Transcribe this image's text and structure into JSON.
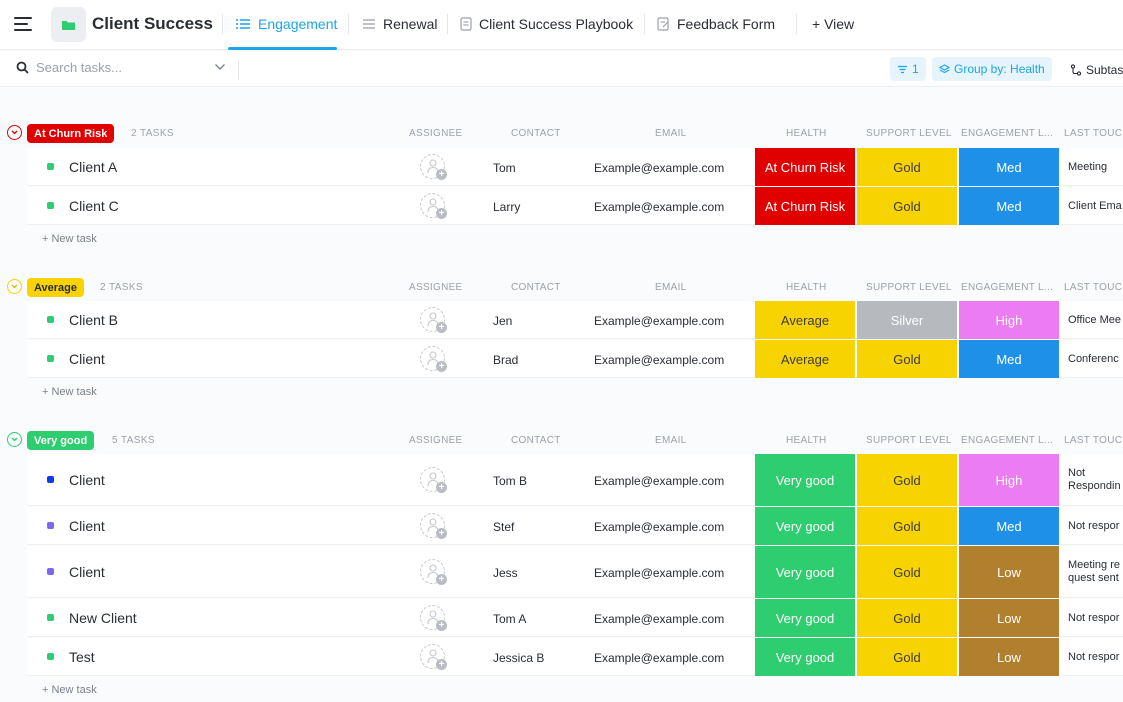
{
  "header": {
    "space_title": "Client Success",
    "tabs": [
      {
        "label": "Engagement",
        "active": true
      },
      {
        "label": "Renewal"
      },
      {
        "label": "Client Success Playbook"
      },
      {
        "label": "Feedback Form"
      },
      {
        "label": "+ View"
      }
    ]
  },
  "toolbar": {
    "search_placeholder": "Search tasks...",
    "filter_label": "1",
    "group_label": "Group by: Health",
    "subtasks_label": "Subtas"
  },
  "columns": {
    "assignee": "ASSIGNEE",
    "contact": "CONTACT",
    "email": "EMAIL",
    "health": "HEALTH",
    "support": "SUPPORT LEVEL",
    "engagement": "ENGAGEMENT L...",
    "last_touch": "LAST TOUCI"
  },
  "colors": {
    "churn": "#e00000",
    "average": "#f8d302",
    "verygood": "#2ecd6f",
    "gold": "#f8d302",
    "silver": "#b6b9be",
    "med": "#1e90e8",
    "high": "#ec7cf2",
    "low": "#b0802e"
  },
  "groups": [
    {
      "name": "At Churn Risk",
      "count": "2 TASKS",
      "new_task": "+ New task",
      "tasks": [
        {
          "name": "Client A",
          "contact": "Tom",
          "email": "Example@example.com",
          "health": "At Churn Risk",
          "support": "Gold",
          "engagement": "Med",
          "last_touch": "Meeting"
        },
        {
          "name": "Client C",
          "contact": "Larry",
          "email": "Example@example.com",
          "health": "At Churn Risk",
          "support": "Gold",
          "engagement": "Med",
          "last_touch": "Client Ema"
        }
      ]
    },
    {
      "name": "Average",
      "count": "2 TASKS",
      "new_task": "+ New task",
      "tasks": [
        {
          "name": "Client B",
          "contact": "Jen",
          "email": "Example@example.com",
          "health": "Average",
          "support": "Silver",
          "engagement": "High",
          "last_touch": "Office Mee"
        },
        {
          "name": "Client",
          "contact": "Brad",
          "email": "Example@example.com",
          "health": "Average",
          "support": "Gold",
          "engagement": "Med",
          "last_touch": "Conferenc"
        }
      ]
    },
    {
      "name": "Very good",
      "count": "5 TASKS",
      "new_task": "+ New task",
      "tasks": [
        {
          "name": "Client",
          "contact": "Tom B",
          "email": "Example@example.com",
          "health": "Very good",
          "support": "Gold",
          "engagement": "High",
          "last_touch": "Not Respondin"
        },
        {
          "name": "Client",
          "contact": "Stef",
          "email": "Example@example.com",
          "health": "Very good",
          "support": "Gold",
          "engagement": "Med",
          "last_touch": "Not respor"
        },
        {
          "name": "Client",
          "contact": "Jess",
          "email": "Example@example.com",
          "health": "Very good",
          "support": "Gold",
          "engagement": "Low",
          "last_touch": "Meeting re quest sent"
        },
        {
          "name": "New Client",
          "contact": "Tom A",
          "email": "Example@example.com",
          "health": "Very good",
          "support": "Gold",
          "engagement": "Low",
          "last_touch": "Not respor"
        },
        {
          "name": "Test",
          "contact": "Jessica B",
          "email": "Example@example.com",
          "health": "Very good",
          "support": "Gold",
          "engagement": "Low",
          "last_touch": "Not respor"
        }
      ]
    }
  ]
}
